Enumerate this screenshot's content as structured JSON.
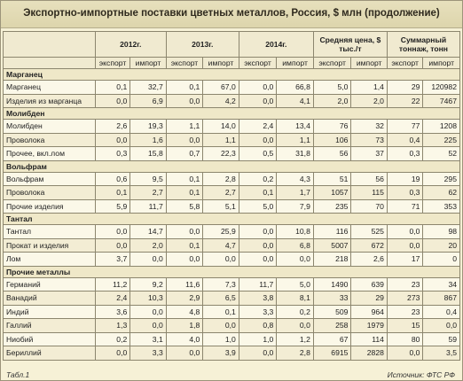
{
  "title": "Экспортно-импортные поставки цветных металлов, Россия, $ млн (продолжение)",
  "columns": [
    "2012г.",
    "2013г.",
    "2014г.",
    "Средняя цена, $ тыс./т",
    "Суммарный тоннаж, тонн"
  ],
  "subcolumns": [
    "экспорт",
    "импорт"
  ],
  "sections": [
    {
      "name": "Марганец",
      "rows": [
        {
          "name": "Марганец",
          "values": [
            "0,1",
            "32,7",
            "0,1",
            "67,0",
            "0,0",
            "66,8",
            "5,0",
            "1,4",
            "29",
            "120982"
          ]
        },
        {
          "name": "Изделия из марганца",
          "values": [
            "0,0",
            "6,9",
            "0,0",
            "4,2",
            "0,0",
            "4,1",
            "2,0",
            "2,0",
            "22",
            "7467"
          ]
        }
      ]
    },
    {
      "name": "Молибден",
      "rows": [
        {
          "name": "Молибден",
          "values": [
            "2,6",
            "19,3",
            "1,1",
            "14,0",
            "2,4",
            "13,4",
            "76",
            "32",
            "77",
            "1208"
          ]
        },
        {
          "name": "Проволока",
          "values": [
            "0,0",
            "1,6",
            "0,0",
            "1,1",
            "0,0",
            "1,1",
            "106",
            "73",
            "0,4",
            "225"
          ]
        },
        {
          "name": "Прочее, вкл.лом",
          "values": [
            "0,3",
            "15,8",
            "0,7",
            "22,3",
            "0,5",
            "31,8",
            "56",
            "37",
            "0,3",
            "52"
          ]
        }
      ]
    },
    {
      "name": "Вольфрам",
      "rows": [
        {
          "name": "Вольфрам",
          "values": [
            "0,6",
            "9,5",
            "0,1",
            "2,8",
            "0,2",
            "4,3",
            "51",
            "56",
            "19",
            "295"
          ]
        },
        {
          "name": "Проволока",
          "values": [
            "0,1",
            "2,7",
            "0,1",
            "2,7",
            "0,1",
            "1,7",
            "1057",
            "115",
            "0,3",
            "62"
          ]
        },
        {
          "name": "Прочие изделия",
          "values": [
            "5,9",
            "11,7",
            "5,8",
            "5,1",
            "5,0",
            "7,9",
            "235",
            "70",
            "71",
            "353"
          ]
        }
      ]
    },
    {
      "name": "Тантал",
      "rows": [
        {
          "name": "Тантал",
          "values": [
            "0,0",
            "14,7",
            "0,0",
            "25,9",
            "0,0",
            "10,8",
            "116",
            "525",
            "0,0",
            "98"
          ]
        },
        {
          "name": "Прокат и изделия",
          "values": [
            "0,0",
            "2,0",
            "0,1",
            "4,7",
            "0,0",
            "6,8",
            "5007",
            "672",
            "0,0",
            "20"
          ]
        },
        {
          "name": "Лом",
          "values": [
            "3,7",
            "0,0",
            "0,0",
            "0,0",
            "0,0",
            "0,0",
            "218",
            "2,6",
            "17",
            "0"
          ]
        }
      ]
    },
    {
      "name": "Прочие металлы",
      "rows": [
        {
          "name": "Германий",
          "values": [
            "11,2",
            "9,2",
            "11,6",
            "7,3",
            "11,7",
            "5,0",
            "1490",
            "639",
            "23",
            "34"
          ]
        },
        {
          "name": "Ванадий",
          "values": [
            "2,4",
            "10,3",
            "2,9",
            "6,5",
            "3,8",
            "8,1",
            "33",
            "29",
            "273",
            "867"
          ]
        },
        {
          "name": "Индий",
          "values": [
            "3,6",
            "0,0",
            "4,8",
            "0,1",
            "3,3",
            "0,2",
            "509",
            "964",
            "23",
            "0,4"
          ]
        },
        {
          "name": "Галлий",
          "values": [
            "1,3",
            "0,0",
            "1,8",
            "0,0",
            "0,8",
            "0,0",
            "258",
            "1979",
            "15",
            "0,0"
          ]
        },
        {
          "name": "Ниобий",
          "values": [
            "0,2",
            "3,1",
            "4,0",
            "1,0",
            "1,0",
            "1,2",
            "67",
            "114",
            "80",
            "59"
          ]
        },
        {
          "name": "Бериллий",
          "values": [
            "0,0",
            "3,3",
            "0,0",
            "3,9",
            "0,0",
            "2,8",
            "6915",
            "2828",
            "0,0",
            "3,5"
          ]
        }
      ]
    }
  ],
  "footer": {
    "left": "Табл.1",
    "right": "Источник: ФТС РФ"
  }
}
